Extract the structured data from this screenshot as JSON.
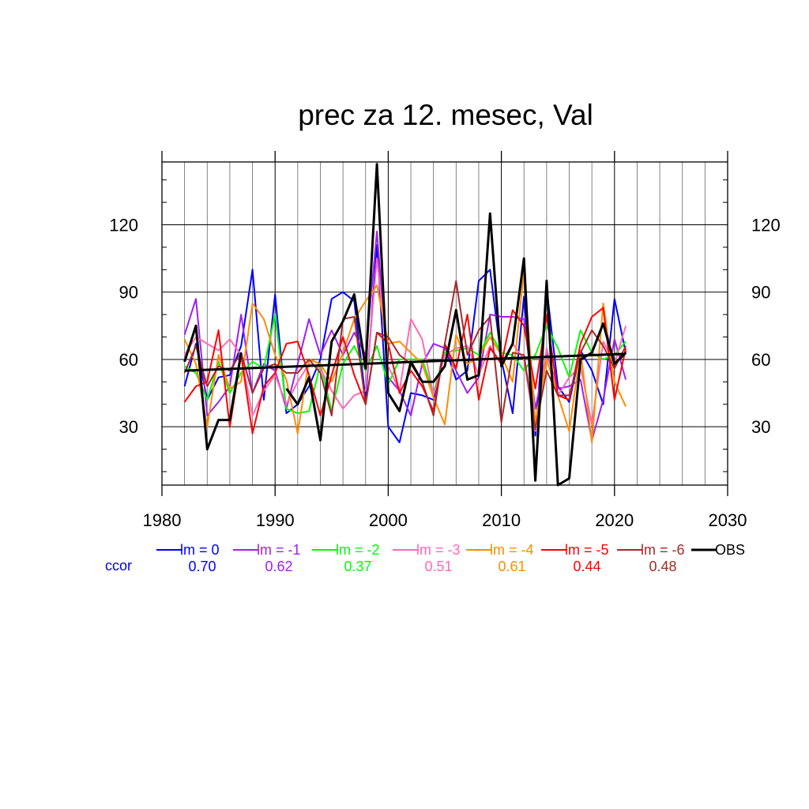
{
  "chart_data": {
    "type": "line",
    "title": "prec za 12. mesec, Val",
    "xlabel": "",
    "ylabel": "",
    "xlim": [
      1980,
      2030
    ],
    "ylim": [
      4,
      148
    ],
    "xticks": [
      1980,
      1990,
      2000,
      2010,
      2020,
      2030
    ],
    "yticks": [
      30,
      60,
      90,
      120
    ],
    "grid": true,
    "ccor_label": "ccor",
    "x": [
      1982,
      1983,
      1984,
      1985,
      1986,
      1987,
      1988,
      1989,
      1990,
      1991,
      1992,
      1993,
      1994,
      1995,
      1996,
      1997,
      1998,
      1999,
      2000,
      2001,
      2002,
      2003,
      2004,
      2005,
      2006,
      2007,
      2008,
      2009,
      2010,
      2011,
      2012,
      2013,
      2014,
      2015,
      2016,
      2017,
      2018,
      2019,
      2020,
      2021
    ],
    "series": [
      {
        "name": "lm = 0",
        "ccor": "0.70",
        "color": "#0000ff",
        "values": [
          48,
          67,
          42,
          52,
          53,
          66,
          100,
          42,
          89,
          36,
          40,
          48,
          60,
          87,
          90,
          86,
          42,
          111,
          30,
          23,
          45,
          44,
          42,
          66,
          51,
          55,
          95,
          100,
          60,
          36,
          88,
          26,
          92,
          48,
          41,
          64,
          55,
          40,
          87,
          63
        ]
      },
      {
        "name": "lm = -1",
        "ccor": "0.62",
        "color": "#a020f0",
        "values": [
          71,
          87,
          35,
          41,
          48,
          80,
          45,
          58,
          55,
          38,
          58,
          78,
          62,
          73,
          62,
          72,
          62,
          117,
          52,
          46,
          35,
          58,
          67,
          65,
          55,
          45,
          52,
          80,
          79,
          79,
          78,
          38,
          63,
          47,
          48,
          51,
          24,
          42,
          69,
          51
        ]
      },
      {
        "name": "lm = -2",
        "ccor": "0.37",
        "color": "#00ff00",
        "values": [
          57,
          54,
          42,
          59,
          45,
          54,
          59,
          56,
          80,
          38,
          36,
          37,
          58,
          37,
          58,
          66,
          55,
          66,
          49,
          60,
          60,
          60,
          45,
          63,
          64,
          65,
          62,
          72,
          63,
          62,
          55,
          62,
          75,
          65,
          52,
          73,
          63,
          60,
          62,
          68
        ]
      },
      {
        "name": "lm = -3",
        "ccor": "0.51",
        "color": "#ff69b4",
        "values": [
          62,
          70,
          67,
          64,
          69,
          62,
          35,
          46,
          53,
          40,
          50,
          58,
          56,
          46,
          38,
          44,
          46,
          105,
          57,
          46,
          78,
          69,
          44,
          62,
          65,
          66,
          53,
          66,
          58,
          67,
          60,
          28,
          65,
          44,
          52,
          57,
          31,
          68,
          58,
          75
        ]
      },
      {
        "name": "lm = -4",
        "ccor": "0.61",
        "color": "#ff8c00",
        "values": [
          69,
          58,
          30,
          62,
          47,
          50,
          85,
          78,
          62,
          51,
          27,
          60,
          58,
          50,
          63,
          78,
          86,
          93,
          67,
          68,
          63,
          58,
          43,
          31,
          71,
          58,
          61,
          70,
          62,
          50,
          100,
          32,
          60,
          44,
          28,
          64,
          23,
          85,
          50,
          39
        ]
      },
      {
        "name": "lm = -5",
        "ccor": "0.44",
        "color": "#ff0000",
        "values": [
          41,
          48,
          50,
          73,
          30,
          62,
          27,
          48,
          54,
          67,
          68,
          53,
          35,
          53,
          70,
          53,
          40,
          72,
          67,
          45,
          55,
          48,
          37,
          67,
          56,
          80,
          42,
          65,
          58,
          82,
          75,
          47,
          80,
          44,
          42,
          67,
          79,
          83,
          42,
          65
        ]
      },
      {
        "name": "lm = -6",
        "ccor": "0.48",
        "color": "#a52a2a",
        "values": [
          54,
          66,
          48,
          57,
          55,
          63,
          45,
          56,
          58,
          54,
          54,
          60,
          54,
          35,
          78,
          79,
          40,
          72,
          70,
          62,
          58,
          50,
          35,
          67,
          95,
          62,
          73,
          79,
          32,
          63,
          62,
          29,
          55,
          44,
          44,
          63,
          73,
          66,
          56,
          66
        ]
      },
      {
        "name": "OBS",
        "ccor": "",
        "color": "#000000",
        "values": [
          59,
          75,
          20,
          33,
          33,
          63,
          null,
          null,
          null,
          47,
          40,
          52,
          24,
          68,
          77,
          89,
          56,
          147,
          45,
          37,
          59,
          50,
          50,
          57,
          82,
          51,
          53,
          125,
          57,
          67,
          105,
          6,
          95,
          4,
          7,
          60,
          63,
          76,
          58,
          63
        ]
      }
    ],
    "trend": {
      "color": "#000000",
      "from": [
        1982,
        55
      ],
      "to": [
        2021,
        62.5
      ]
    }
  }
}
